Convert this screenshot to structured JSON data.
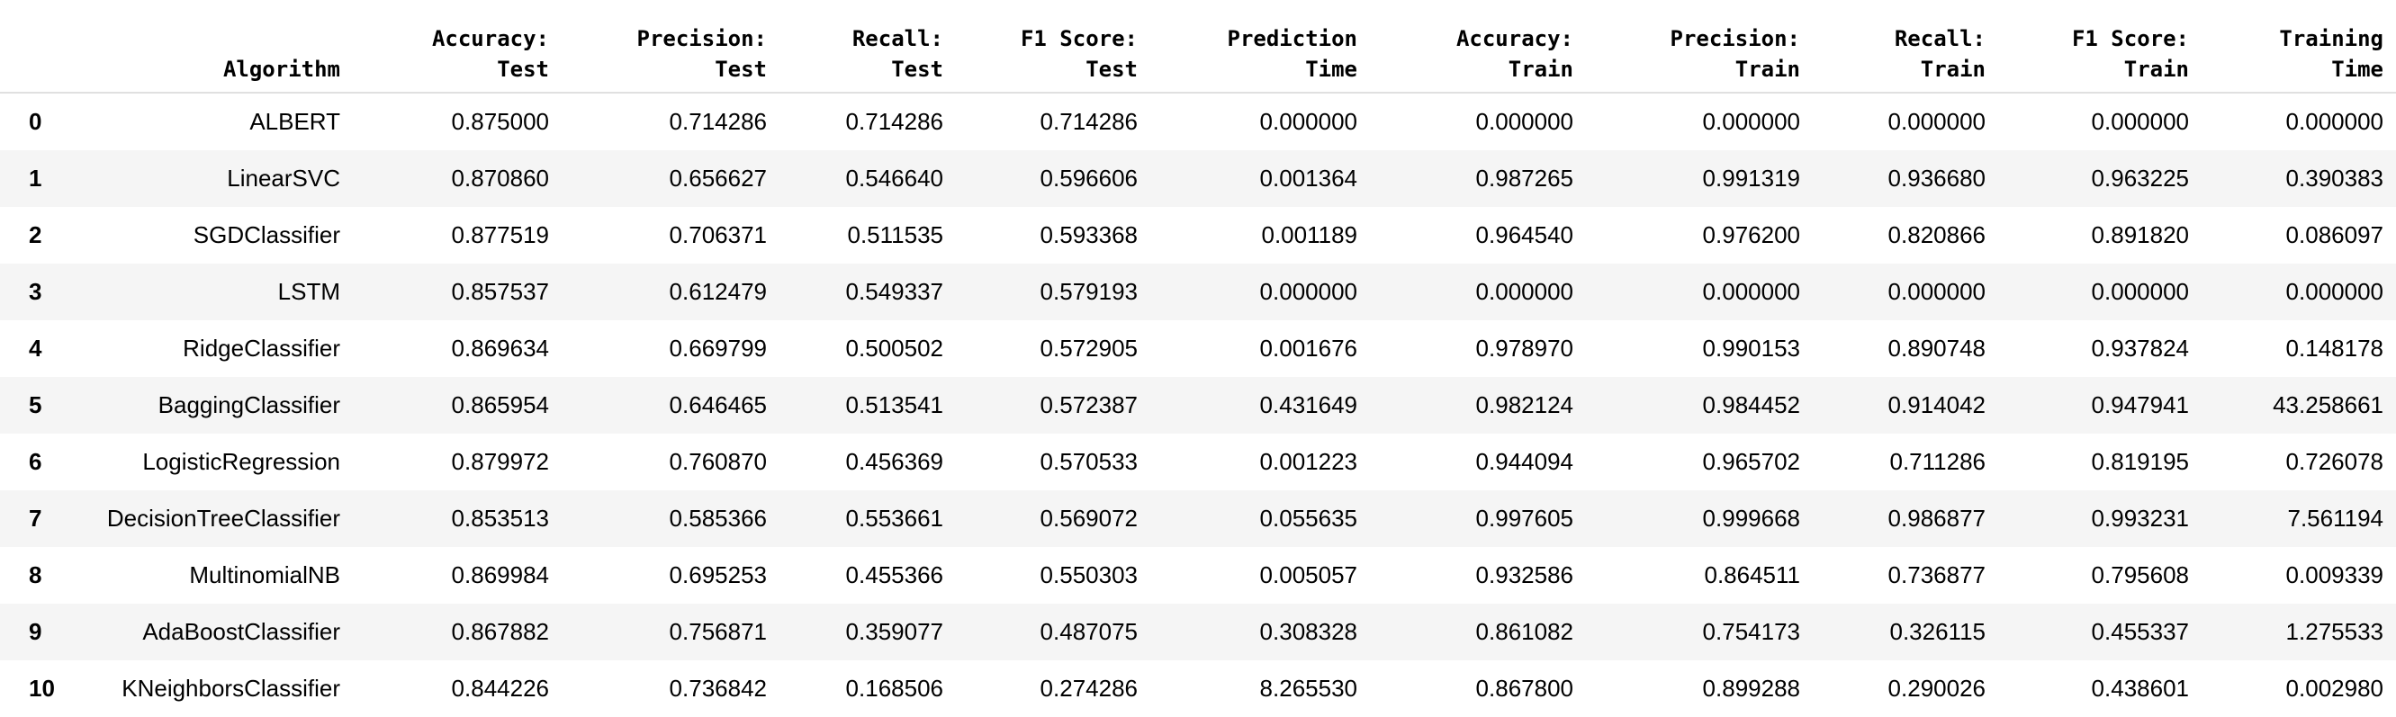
{
  "table": {
    "index_header": "",
    "columns": [
      "Algorithm",
      "Accuracy:\nTest",
      "Precision:\nTest",
      "Recall:\nTest",
      "F1 Score:\nTest",
      "Prediction\nTime",
      "Accuracy:\nTrain",
      "Precision:\nTrain",
      "Recall:\nTrain",
      "F1 Score:\nTrain",
      "Training\nTime"
    ],
    "rows": [
      {
        "index": "0",
        "cells": [
          "ALBERT",
          "0.875000",
          "0.714286",
          "0.714286",
          "0.714286",
          "0.000000",
          "0.000000",
          "0.000000",
          "0.000000",
          "0.000000",
          "0.000000"
        ]
      },
      {
        "index": "1",
        "cells": [
          "LinearSVC",
          "0.870860",
          "0.656627",
          "0.546640",
          "0.596606",
          "0.001364",
          "0.987265",
          "0.991319",
          "0.936680",
          "0.963225",
          "0.390383"
        ]
      },
      {
        "index": "2",
        "cells": [
          "SGDClassifier",
          "0.877519",
          "0.706371",
          "0.511535",
          "0.593368",
          "0.001189",
          "0.964540",
          "0.976200",
          "0.820866",
          "0.891820",
          "0.086097"
        ]
      },
      {
        "index": "3",
        "cells": [
          "LSTM",
          "0.857537",
          "0.612479",
          "0.549337",
          "0.579193",
          "0.000000",
          "0.000000",
          "0.000000",
          "0.000000",
          "0.000000",
          "0.000000"
        ]
      },
      {
        "index": "4",
        "cells": [
          "RidgeClassifier",
          "0.869634",
          "0.669799",
          "0.500502",
          "0.572905",
          "0.001676",
          "0.978970",
          "0.990153",
          "0.890748",
          "0.937824",
          "0.148178"
        ]
      },
      {
        "index": "5",
        "cells": [
          "BaggingClassifier",
          "0.865954",
          "0.646465",
          "0.513541",
          "0.572387",
          "0.431649",
          "0.982124",
          "0.984452",
          "0.914042",
          "0.947941",
          "43.258661"
        ]
      },
      {
        "index": "6",
        "cells": [
          "LogisticRegression",
          "0.879972",
          "0.760870",
          "0.456369",
          "0.570533",
          "0.001223",
          "0.944094",
          "0.965702",
          "0.711286",
          "0.819195",
          "0.726078"
        ]
      },
      {
        "index": "7",
        "cells": [
          "DecisionTreeClassifier",
          "0.853513",
          "0.585366",
          "0.553661",
          "0.569072",
          "0.055635",
          "0.997605",
          "0.999668",
          "0.986877",
          "0.993231",
          "7.561194"
        ]
      },
      {
        "index": "8",
        "cells": [
          "MultinomialNB",
          "0.869984",
          "0.695253",
          "0.455366",
          "0.550303",
          "0.005057",
          "0.932586",
          "0.864511",
          "0.736877",
          "0.795608",
          "0.009339"
        ]
      },
      {
        "index": "9",
        "cells": [
          "AdaBoostClassifier",
          "0.867882",
          "0.756871",
          "0.359077",
          "0.487075",
          "0.308328",
          "0.861082",
          "0.754173",
          "0.326115",
          "0.455337",
          "1.275533"
        ]
      },
      {
        "index": "10",
        "cells": [
          "KNeighborsClassifier",
          "0.844226",
          "0.736842",
          "0.168506",
          "0.274286",
          "8.265530",
          "0.867800",
          "0.899288",
          "0.290026",
          "0.438601",
          "0.002980"
        ]
      }
    ]
  }
}
